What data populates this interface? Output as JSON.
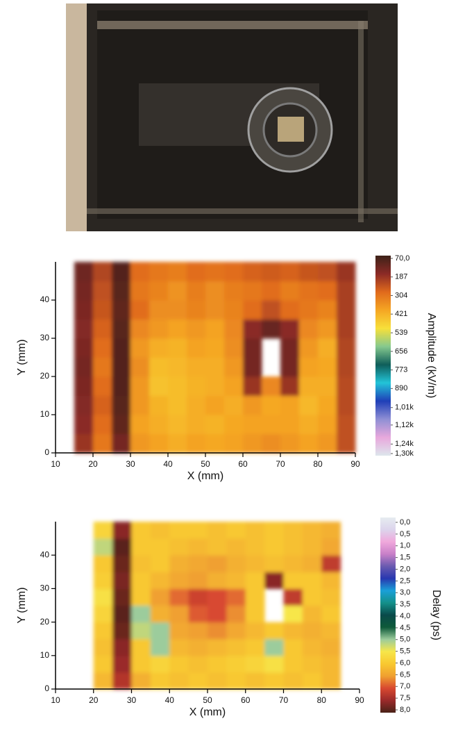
{
  "chart_data": [
    {
      "type": "heatmap",
      "xlabel": "X (mm)",
      "ylabel": "Y (mm)",
      "colorbar_label": "Amplitude (kV/m)",
      "xlim": [
        10,
        90
      ],
      "ylim": [
        0,
        50
      ],
      "xticks": [
        10,
        20,
        30,
        40,
        50,
        60,
        70,
        80,
        90
      ],
      "yticks": [
        0,
        10,
        20,
        30,
        40
      ],
      "clim": [
        70,
        1300
      ],
      "colorscale": [
        "#3d2218",
        "#8b2a26",
        "#e06a1c",
        "#f5a623",
        "#f7e03a",
        "#86c98e",
        "#0f5e5a",
        "#22c4d8",
        "#1f3fb8",
        "#8f8fd4",
        "#e8a8dc",
        "#dde6ec"
      ],
      "cticks": [
        {
          "value": 70,
          "label": "70,0"
        },
        187,
        304,
        421,
        539,
        656,
        773,
        890,
        {
          "value": 1010,
          "label": "1,01k"
        },
        {
          "value": 1120,
          "label": "1,12k"
        },
        {
          "value": 1240,
          "label": "1,24k"
        },
        {
          "value": 1300,
          "label": "1,30k"
        }
      ],
      "x": [
        17.5,
        22.5,
        27.5,
        32.5,
        37.5,
        42.5,
        47.5,
        52.5,
        57.5,
        62.5,
        67.5,
        72.5,
        77.5,
        82.5,
        87.5
      ],
      "y": [
        2.5,
        7.5,
        12.5,
        17.5,
        22.5,
        27.5,
        32.5,
        37.5,
        42.5,
        47.5
      ],
      "z": [
        [
          200,
          320,
          150,
          380,
          400,
          420,
          400,
          410,
          400,
          380,
          360,
          380,
          400,
          380,
          250
        ],
        [
          180,
          300,
          120,
          400,
          420,
          440,
          420,
          430,
          410,
          400,
          400,
          400,
          420,
          400,
          250
        ],
        [
          170,
          280,
          110,
          380,
          430,
          450,
          420,
          400,
          420,
          380,
          410,
          400,
          440,
          410,
          240
        ],
        [
          160,
          300,
          100,
          380,
          460,
          450,
          430,
          420,
          400,
          200,
          350,
          200,
          420,
          420,
          240
        ],
        [
          150,
          320,
          100,
          360,
          450,
          440,
          420,
          420,
          380,
          150,
          null,
          150,
          400,
          410,
          230
        ],
        [
          160,
          300,
          100,
          380,
          420,
          430,
          400,
          410,
          360,
          150,
          null,
          150,
          380,
          420,
          230
        ],
        [
          170,
          280,
          110,
          350,
          380,
          400,
          380,
          400,
          350,
          180,
          130,
          180,
          350,
          380,
          220
        ],
        [
          160,
          260,
          120,
          300,
          360,
          360,
          340,
          360,
          340,
          300,
          250,
          300,
          320,
          340,
          220
        ],
        [
          150,
          250,
          110,
          320,
          340,
          370,
          330,
          360,
          330,
          320,
          300,
          330,
          310,
          300,
          220
        ],
        [
          140,
          230,
          100,
          300,
          320,
          330,
          300,
          310,
          300,
          280,
          270,
          280,
          260,
          250,
          200
        ]
      ]
    },
    {
      "type": "heatmap",
      "xlabel": "X (mm)",
      "ylabel": "Y (mm)",
      "colorbar_label": "Delay (ps)",
      "xlim": [
        10,
        90
      ],
      "ylim": [
        0,
        50
      ],
      "xticks": [
        10,
        20,
        30,
        40,
        50,
        60,
        70,
        80,
        90
      ],
      "yticks": [
        0,
        10,
        20,
        30,
        40
      ],
      "clim": [
        0,
        8
      ],
      "colorscale": [
        "#e6ecf0",
        "#dcd4ec",
        "#f0a8dc",
        "#c880c8",
        "#6a5ab0",
        "#2838b0",
        "#1aa0d8",
        "#14908a",
        "#0a4a4a",
        "#0e5a3a",
        "#9ccc9c",
        "#f7e64a",
        "#f8c830",
        "#f0a030",
        "#d84830",
        "#9a2a2a",
        "#4a2218"
      ],
      "cticks": [
        {
          "value": 0,
          "label": "0,0"
        },
        {
          "value": 0.5,
          "label": "0,5"
        },
        {
          "value": 1,
          "label": "1,0"
        },
        {
          "value": 1.5,
          "label": "1,5"
        },
        {
          "value": 2,
          "label": "2,0"
        },
        {
          "value": 2.5,
          "label": "2,5"
        },
        {
          "value": 3,
          "label": "3,0"
        },
        {
          "value": 3.5,
          "label": "3,5"
        },
        {
          "value": 4,
          "label": "4,0"
        },
        {
          "value": 4.5,
          "label": "4,5"
        },
        {
          "value": 5,
          "label": "5,0"
        },
        {
          "value": 5.5,
          "label": "5,5"
        },
        {
          "value": 6,
          "label": "6,0"
        },
        {
          "value": 6.5,
          "label": "6,5"
        },
        {
          "value": 7,
          "label": "7,0"
        },
        {
          "value": 7.5,
          "label": "7,5"
        },
        {
          "value": 8,
          "label": "8,0"
        }
      ],
      "x": [
        17.5,
        22.5,
        27.5,
        32.5,
        37.5,
        42.5,
        47.5,
        52.5,
        57.5,
        62.5,
        67.5,
        72.5,
        77.5,
        82.5,
        87.5
      ],
      "y": [
        2.5,
        7.5,
        12.5,
        17.5,
        22.5,
        27.5,
        32.5,
        37.5,
        42.5,
        47.5
      ],
      "z": [
        [
          null,
          6.2,
          7.3,
          6.3,
          6.0,
          6.1,
          6.0,
          6.1,
          6.0,
          6.1,
          6.0,
          6.1,
          6.0,
          6.2,
          null
        ],
        [
          null,
          6.0,
          7.5,
          6.0,
          5.8,
          6.0,
          6.1,
          6.0,
          5.9,
          5.8,
          5.6,
          6.0,
          6.1,
          6.2,
          null
        ],
        [
          null,
          6.1,
          7.6,
          6.0,
          5.0,
          6.2,
          6.3,
          6.2,
          6.1,
          6.0,
          5.0,
          6.0,
          6.2,
          6.3,
          null
        ],
        [
          null,
          6.0,
          7.8,
          5.2,
          5.0,
          6.4,
          6.5,
          6.6,
          6.4,
          6.2,
          6.0,
          6.2,
          6.3,
          6.2,
          null
        ],
        [
          null,
          5.8,
          7.9,
          5.0,
          6.3,
          6.5,
          6.9,
          7.0,
          6.6,
          6.0,
          null,
          5.5,
          6.2,
          6.0,
          null
        ],
        [
          null,
          5.6,
          7.8,
          6.0,
          6.5,
          6.8,
          7.1,
          7.0,
          6.8,
          6.0,
          null,
          7.2,
          6.0,
          6.1,
          null
        ],
        [
          null,
          5.9,
          7.7,
          6.0,
          6.2,
          6.4,
          6.5,
          6.3,
          6.2,
          6.0,
          7.6,
          6.0,
          6.0,
          6.2,
          null
        ],
        [
          null,
          6.0,
          7.8,
          6.1,
          6.0,
          6.3,
          6.4,
          6.5,
          6.3,
          6.2,
          6.1,
          6.2,
          6.3,
          7.2,
          null
        ],
        [
          null,
          5.2,
          7.9,
          6.0,
          6.0,
          6.1,
          6.2,
          6.1,
          6.2,
          6.1,
          6.0,
          6.1,
          6.2,
          6.4,
          null
        ],
        [
          null,
          5.8,
          7.6,
          6.0,
          6.1,
          6.0,
          6.0,
          6.1,
          6.0,
          6.1,
          6.0,
          6.1,
          6.2,
          6.3,
          null
        ]
      ]
    }
  ]
}
